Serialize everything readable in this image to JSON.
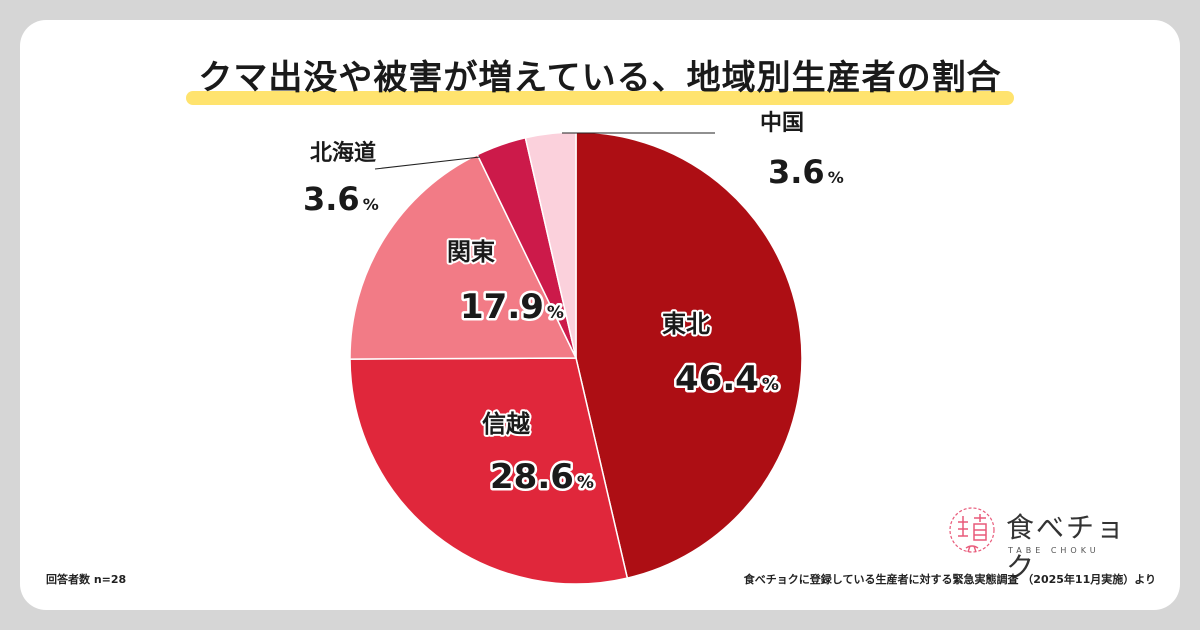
{
  "page": {
    "title": "クマ出没や被害が増えている、地域別生産者の割合",
    "footer_left": "回答者数 n=28",
    "footer_right": "食べチョクに登録している生産者に対する緊急実態調査 （2025年11月実施）より",
    "logo": {
      "name": "食べチョク",
      "sub": "TABE CHOKU"
    }
  },
  "chart_data": {
    "type": "pie",
    "title": "クマ出没や被害が増えている、地域別生産者の割合",
    "unit": "%",
    "slices": [
      {
        "label": "東北",
        "value": 46.4,
        "display": "46.4",
        "color": "#ad0e14"
      },
      {
        "label": "信越",
        "value": 28.6,
        "display": "28.6",
        "color": "#e0273b"
      },
      {
        "label": "関東",
        "value": 17.9,
        "display": "17.9",
        "color": "#f27b86"
      },
      {
        "label": "北海道",
        "value": 3.6,
        "display": "3.6",
        "color": "#cc1a4a"
      },
      {
        "label": "中国",
        "value": 3.6,
        "display": "3.6",
        "color": "#fbd1dc"
      }
    ]
  }
}
